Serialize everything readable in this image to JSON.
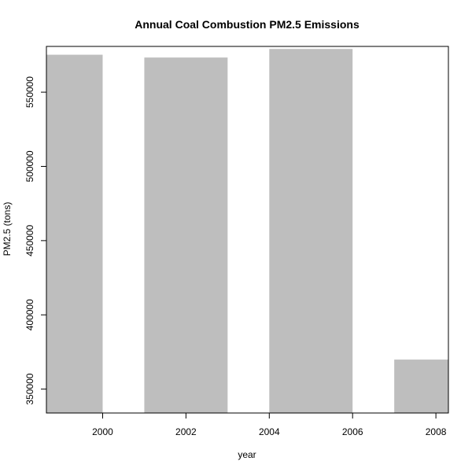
{
  "chart_data": {
    "type": "bar",
    "title": "Annual Coal Combustion PM2.5 Emissions",
    "xlabel": "year",
    "ylabel": "PM2.5 (tons)",
    "x": [
      1999,
      2002,
      2005,
      2008
    ],
    "values": [
      575207,
      573310,
      579090,
      369873
    ],
    "xlim": [
      1998.65,
      2008.3
    ],
    "ylim": [
      333900,
      580800
    ],
    "x_ticks": [
      2000,
      2002,
      2004,
      2006,
      2008
    ],
    "y_ticks": [
      350000,
      400000,
      450000,
      500000,
      550000
    ],
    "bar_color": "#bebebe",
    "axis_color": "#000000",
    "grid": false
  }
}
